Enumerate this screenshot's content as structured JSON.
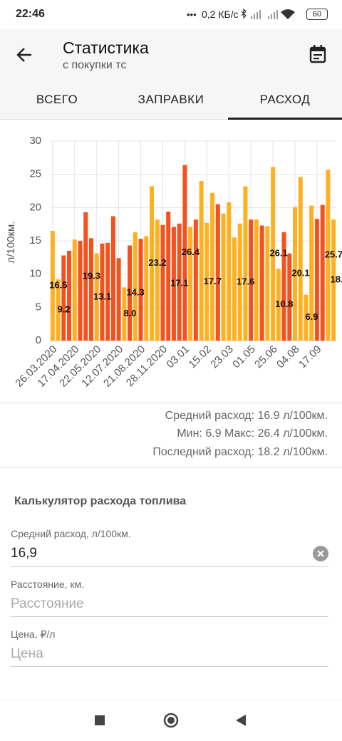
{
  "status_bar": {
    "time": "22:46",
    "speed": "0,2 КБ/с",
    "battery": "60"
  },
  "app_bar": {
    "title": "Статистика",
    "subtitle": "с покупки тс"
  },
  "tabs": [
    "ВСЕГО",
    "ЗАПРАВКИ",
    "РАСХОД"
  ],
  "chart_data": {
    "type": "bar",
    "ylabel": "л/100км.",
    "categories": [
      "26.03.2020",
      null,
      null,
      null,
      "17.04.2020",
      null,
      null,
      null,
      "22.05.2020",
      null,
      null,
      null,
      "12.07.2020",
      null,
      null,
      null,
      "21.08.2020",
      null,
      null,
      null,
      "28.11.2020",
      null,
      null,
      null,
      "03.01",
      null,
      null,
      null,
      "15.02",
      null,
      null,
      null,
      "23.03",
      null,
      null,
      null,
      "01.05",
      null,
      null,
      null,
      "25.06",
      null,
      null,
      null,
      "04.08",
      null,
      null,
      null,
      "17.09",
      null,
      null,
      null
    ],
    "values": [
      16.5,
      9.2,
      12.8,
      13.5,
      15.2,
      15.0,
      19.3,
      15.4,
      13.1,
      14.6,
      14.7,
      18.7,
      12.4,
      8.0,
      14.3,
      16.3,
      15.3,
      15.7,
      23.2,
      18.2,
      17.4,
      19.4,
      17.1,
      17.6,
      26.4,
      17.1,
      18.2,
      24.0,
      17.7,
      22.2,
      20.5,
      19.1,
      20.8,
      15.5,
      17.6,
      23.2,
      18.2,
      18.2,
      17.3,
      17.2,
      26.1,
      10.8,
      16.3,
      13.1,
      20.1,
      24.6,
      6.9,
      20.3,
      18.3,
      20.4,
      25.7,
      18.2
    ],
    "value_labels": [
      "16.5",
      "9.2",
      null,
      null,
      null,
      null,
      "19.3",
      null,
      "13.1",
      null,
      null,
      null,
      null,
      "8.0",
      "14.3",
      null,
      null,
      null,
      "23.2",
      null,
      null,
      null,
      "17.1",
      null,
      "26.4",
      null,
      null,
      null,
      "17.7",
      null,
      null,
      null,
      null,
      null,
      "17.6",
      null,
      null,
      null,
      null,
      null,
      "26.1",
      "10.8",
      null,
      null,
      "20.1",
      null,
      "6.9",
      null,
      null,
      null,
      "25.7",
      "18.2"
    ],
    "colors": [
      "#FFB020",
      "#FFB020",
      "#F4511E",
      "#F4511E",
      "#FFB020",
      "#F4511E",
      "#F4511E",
      "#F4511E",
      "#FFB020",
      "#F4511E",
      "#F4511E",
      "#F4511E",
      "#F4511E",
      "#FFB020",
      "#F4511E",
      "#FFB020",
      "#F4511E",
      "#FFB020",
      "#FFB020",
      "#FFB020",
      "#F4511E",
      "#F4511E",
      "#F4511E",
      "#F4511E",
      "#F4511E",
      "#FFB020",
      "#F4511E",
      "#FFB020",
      "#FFB020",
      "#FFB020",
      "#F4511E",
      "#FFB020",
      "#FFB020",
      "#FFB020",
      "#FFB020",
      "#FFB020",
      "#F4511E",
      "#FFB020",
      "#F4511E",
      "#FFB020",
      "#FFB020",
      "#FFB020",
      "#F4511E",
      "#F4511E",
      "#FFB020",
      "#FFB020",
      "#FFB020",
      "#FFB020",
      "#F4511E",
      "#F4511E",
      "#FFB020",
      "#FFB020"
    ],
    "ylim": [
      0,
      30
    ],
    "yticks": [
      0,
      5,
      10,
      15,
      20,
      25,
      30
    ],
    "grid": true
  },
  "summary": [
    "Средний расход: 16.9 л/100км.",
    "Мин: 6.9 Макс: 26.4 л/100км.",
    "Последний расход: 18.2 л/100км."
  ],
  "calculator": {
    "title": "Калькулятор расхода топлива",
    "fields": [
      {
        "label": "Средний расход, л/100км.",
        "value": "16,9"
      },
      {
        "label": "Расстояние, км.",
        "placeholder": "Расстояние"
      },
      {
        "label": "Цена, ₽/л",
        "placeholder": "Цена"
      }
    ]
  }
}
